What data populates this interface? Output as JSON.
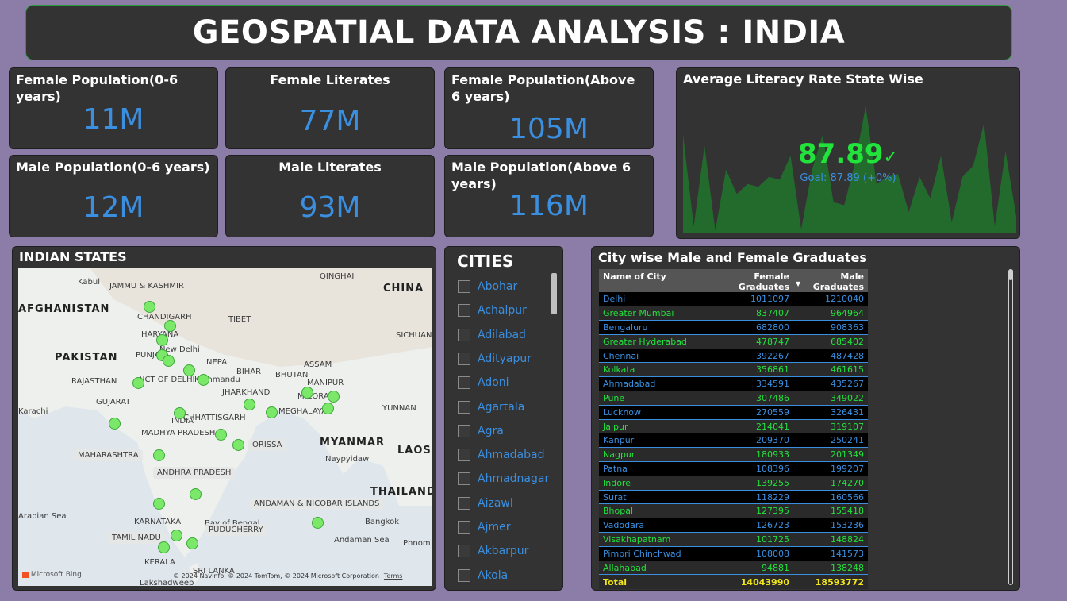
{
  "header": {
    "title": "GEOSPATIAL DATA ANALYSIS : INDIA"
  },
  "cards": [
    {
      "label": "Female Population(0-6 years)",
      "value": "11M"
    },
    {
      "label": "Female Literates",
      "value": "77M"
    },
    {
      "label": "Female Population(Above 6 years)",
      "value": "105M"
    },
    {
      "label": "Male Population(0-6 years)",
      "value": "12M"
    },
    {
      "label": "Male Literates",
      "value": "93M"
    },
    {
      "label": "Male Population(Above 6 years)",
      "value": "116M"
    }
  ],
  "kpi": {
    "title": "Average Literacy Rate State Wise",
    "value": "87.89",
    "check": "✓",
    "goal": "Goal: 87.89 (+0%)",
    "color": "#22e23c"
  },
  "chart_data": {
    "type": "area",
    "title": "Average Literacy Rate State Wise",
    "values": [
      70,
      5,
      62,
      2,
      45,
      28,
      35,
      33,
      40,
      38,
      55,
      3,
      45,
      70,
      22,
      20,
      50,
      90,
      35,
      40,
      42,
      15,
      40,
      25,
      55,
      8,
      40,
      48,
      78,
      5,
      58,
      12
    ],
    "ylim": [
      0,
      100
    ]
  },
  "map": {
    "title": "INDIAN STATES",
    "labels": [
      {
        "text": "Kabul",
        "cls": ""
      },
      {
        "text": "JAMMU & KASHMIR",
        "cls": ""
      },
      {
        "text": "QINGHAI",
        "cls": ""
      },
      {
        "text": "CHINA",
        "cls": "big"
      },
      {
        "text": "AFGHANISTAN",
        "cls": "big"
      },
      {
        "text": "CHANDIGARH",
        "cls": ""
      },
      {
        "text": "TIBET",
        "cls": ""
      },
      {
        "text": "SICHUAN",
        "cls": ""
      },
      {
        "text": "HARYANA",
        "cls": ""
      },
      {
        "text": "New Delhi",
        "cls": ""
      },
      {
        "text": "PAKISTAN",
        "cls": "big"
      },
      {
        "text": "PUNJAB",
        "cls": ""
      },
      {
        "text": "NEPAL",
        "cls": ""
      },
      {
        "text": "ASSAM",
        "cls": ""
      },
      {
        "text": "BIHAR",
        "cls": ""
      },
      {
        "text": "BHUTAN",
        "cls": ""
      },
      {
        "text": "RAJASTHAN",
        "cls": ""
      },
      {
        "text": "NCT OF DELHI",
        "cls": ""
      },
      {
        "text": "Kathmandu",
        "cls": ""
      },
      {
        "text": "MANIPUR",
        "cls": ""
      },
      {
        "text": "JHARKHAND",
        "cls": ""
      },
      {
        "text": "MIZORAM",
        "cls": ""
      },
      {
        "text": "GUJARAT",
        "cls": ""
      },
      {
        "text": "YUNNAN",
        "cls": ""
      },
      {
        "text": "CHHATTISGARH",
        "cls": ""
      },
      {
        "text": "MEGHALAYA",
        "cls": ""
      },
      {
        "text": "Karachi",
        "cls": ""
      },
      {
        "text": "INDIA",
        "cls": ""
      },
      {
        "text": "MADHYA PRADESH",
        "cls": ""
      },
      {
        "text": "MYANMAR",
        "cls": "big"
      },
      {
        "text": "ORISSA",
        "cls": "pill"
      },
      {
        "text": "LAOS",
        "cls": "big"
      },
      {
        "text": "MAHARASHTRA",
        "cls": "pill"
      },
      {
        "text": "Naypyidaw",
        "cls": ""
      },
      {
        "text": "ANDHRA PRADESH",
        "cls": "pill"
      },
      {
        "text": "THAILAND",
        "cls": "big"
      },
      {
        "text": "ANDAMAN & NICOBAR ISLANDS",
        "cls": "pill"
      },
      {
        "text": "Arabian Sea",
        "cls": ""
      },
      {
        "text": "KARNATAKA",
        "cls": ""
      },
      {
        "text": "Bay of Bengal",
        "cls": ""
      },
      {
        "text": "Bangkok",
        "cls": ""
      },
      {
        "text": "PUDUCHERRY",
        "cls": "pill"
      },
      {
        "text": "TAMIL NADU",
        "cls": "pill"
      },
      {
        "text": "Andaman Sea",
        "cls": ""
      },
      {
        "text": "Phnom",
        "cls": ""
      },
      {
        "text": "KERALA",
        "cls": ""
      },
      {
        "text": "SRI LANKA",
        "cls": ""
      },
      {
        "text": "Lakshadweep",
        "cls": ""
      }
    ],
    "bing": "Microsoft Bing",
    "copyright": "© 2024 NavInfo, © 2024 TomTom, © 2024 Microsoft Corporation",
    "terms": "Terms",
    "marker_color": "#7ce86a"
  },
  "slicer": {
    "title": "CITIES",
    "items": [
      "Abohar",
      "Achalpur",
      "Adilabad",
      "Adityapur",
      "Adoni",
      "Agartala",
      "Agra",
      "Ahmadabad",
      "Ahmadnagar",
      "Aizawl",
      "Ajmer",
      "Akbarpur",
      "Akola"
    ]
  },
  "table": {
    "title": "City wise Male and Female Graduates",
    "columns": [
      "Name of City",
      "Female Graduates",
      "Male Graduates"
    ],
    "sort_indicator": "▼",
    "rows": [
      [
        "Delhi",
        "1011097",
        "1210040"
      ],
      [
        "Greater Mumbai",
        "837407",
        "964964"
      ],
      [
        "Bengaluru",
        "682800",
        "908363"
      ],
      [
        "Greater Hyderabad",
        "478747",
        "685402"
      ],
      [
        "Chennai",
        "392267",
        "487428"
      ],
      [
        "Kolkata",
        "356861",
        "461615"
      ],
      [
        "Ahmadabad",
        "334591",
        "435267"
      ],
      [
        "Pune",
        "307486",
        "349022"
      ],
      [
        "Lucknow",
        "270559",
        "326431"
      ],
      [
        "Jaipur",
        "214041",
        "319107"
      ],
      [
        "Kanpur",
        "209370",
        "250241"
      ],
      [
        "Nagpur",
        "180933",
        "201349"
      ],
      [
        "Patna",
        "108396",
        "199207"
      ],
      [
        "Indore",
        "139255",
        "174270"
      ],
      [
        "Surat",
        "118229",
        "160566"
      ],
      [
        "Bhopal",
        "127395",
        "155418"
      ],
      [
        "Vadodara",
        "126723",
        "153236"
      ],
      [
        "Visakhapatnam",
        "101725",
        "148824"
      ],
      [
        "Pimpri Chinchwad",
        "108008",
        "141573"
      ],
      [
        "Allahabad",
        "94881",
        "138248"
      ]
    ],
    "total": [
      "Total",
      "14043990",
      "18593772"
    ]
  }
}
